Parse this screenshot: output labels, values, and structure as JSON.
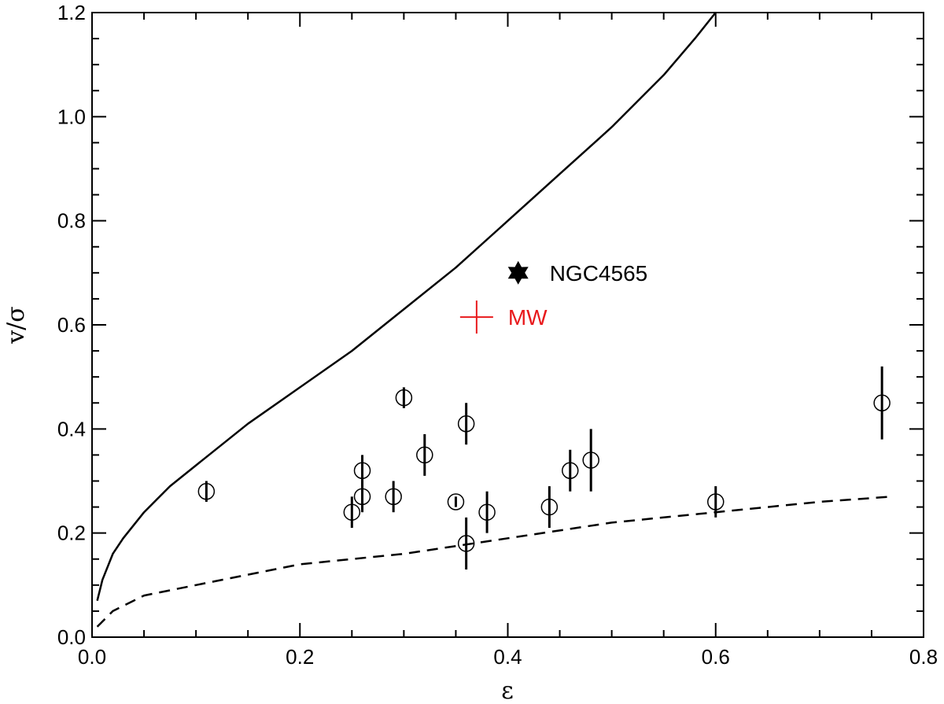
{
  "chart_data": {
    "type": "scatter",
    "title": "",
    "xlabel": "ε",
    "ylabel": "v/σ",
    "xlim": [
      0.0,
      0.8
    ],
    "ylim": [
      0.0,
      1.2
    ],
    "xticks": [
      "0.0",
      "0.2",
      "0.4",
      "0.6",
      "0.8"
    ],
    "yticks": [
      "0.0",
      "0.2",
      "0.4",
      "0.6",
      "0.8",
      "1.0",
      "1.2"
    ],
    "grid": false,
    "series": [
      {
        "marker": "open-circle",
        "points": [
          {
            "x": 0.11,
            "y": 0.28,
            "err": 0.02
          },
          {
            "x": 0.25,
            "y": 0.24,
            "err": 0.03
          },
          {
            "x": 0.26,
            "y": 0.32,
            "err": 0.03
          },
          {
            "x": 0.26,
            "y": 0.27,
            "err": 0.03
          },
          {
            "x": 0.29,
            "y": 0.27,
            "err": 0.03
          },
          {
            "x": 0.3,
            "y": 0.46,
            "err": 0.02
          },
          {
            "x": 0.32,
            "y": 0.35,
            "err": 0.04
          },
          {
            "x": 0.35,
            "y": 0.26,
            "err": 0.01
          },
          {
            "x": 0.36,
            "y": 0.41,
            "err": 0.04
          },
          {
            "x": 0.36,
            "y": 0.18,
            "err": 0.05
          },
          {
            "x": 0.38,
            "y": 0.24,
            "err": 0.04
          },
          {
            "x": 0.44,
            "y": 0.25,
            "err": 0.04
          },
          {
            "x": 0.46,
            "y": 0.32,
            "err": 0.04
          },
          {
            "x": 0.48,
            "y": 0.34,
            "err": 0.06
          },
          {
            "x": 0.6,
            "y": 0.26,
            "err": 0.03
          },
          {
            "x": 0.76,
            "y": 0.45,
            "err": 0.07
          }
        ]
      }
    ],
    "curves": [
      {
        "style": "solid",
        "points": [
          [
            0.005,
            0.07
          ],
          [
            0.01,
            0.11
          ],
          [
            0.02,
            0.16
          ],
          [
            0.03,
            0.19
          ],
          [
            0.05,
            0.24
          ],
          [
            0.075,
            0.29
          ],
          [
            0.1,
            0.33
          ],
          [
            0.15,
            0.41
          ],
          [
            0.2,
            0.48
          ],
          [
            0.25,
            0.55
          ],
          [
            0.3,
            0.63
          ],
          [
            0.35,
            0.71
          ],
          [
            0.4,
            0.8
          ],
          [
            0.45,
            0.89
          ],
          [
            0.5,
            0.98
          ],
          [
            0.55,
            1.08
          ],
          [
            0.58,
            1.15
          ],
          [
            0.6,
            1.2
          ]
        ]
      },
      {
        "style": "dashed",
        "points": [
          [
            0.005,
            0.02
          ],
          [
            0.02,
            0.05
          ],
          [
            0.05,
            0.08
          ],
          [
            0.1,
            0.1
          ],
          [
            0.2,
            0.14
          ],
          [
            0.3,
            0.16
          ],
          [
            0.4,
            0.19
          ],
          [
            0.5,
            0.22
          ],
          [
            0.6,
            0.24
          ],
          [
            0.7,
            0.26
          ],
          [
            0.77,
            0.27
          ]
        ]
      }
    ],
    "highlights": [
      {
        "label": "NGC4565",
        "x": 0.41,
        "y": 0.7,
        "marker": "star",
        "color": "#000000"
      },
      {
        "label": "MW",
        "x": 0.37,
        "y": 0.615,
        "marker": "plus",
        "color": "#e8191c"
      }
    ]
  }
}
